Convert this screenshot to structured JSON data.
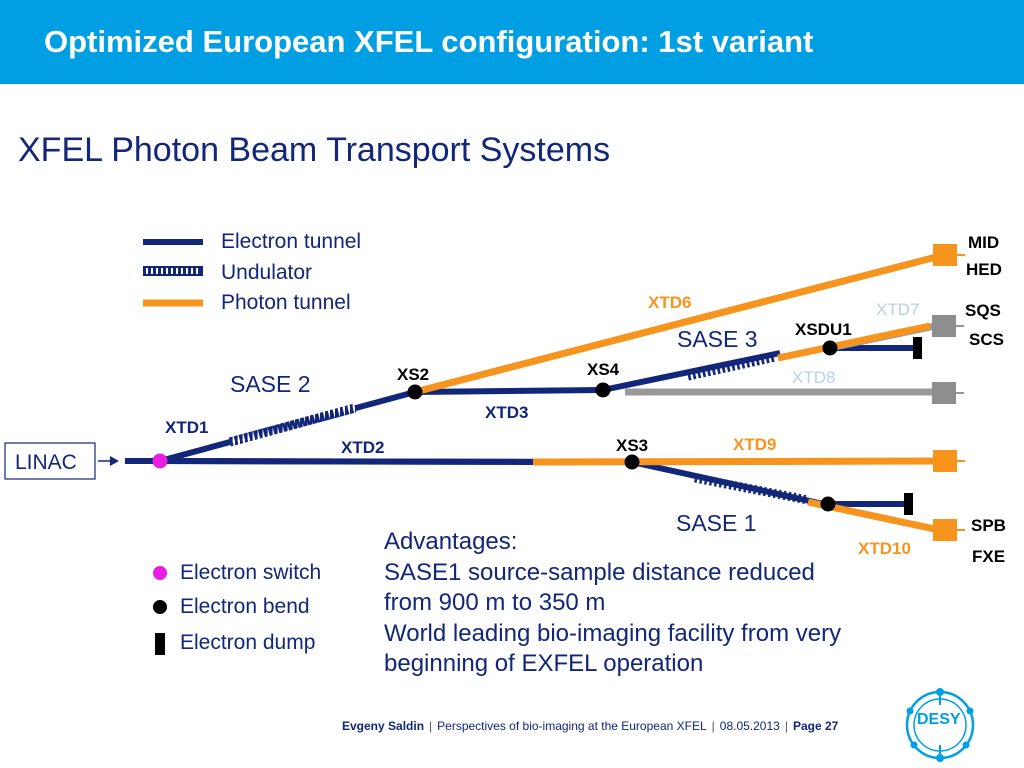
{
  "header": {
    "title": "Optimized European XFEL configuration: 1st variant"
  },
  "subtitle": "XFEL Photon Beam Transport Systems",
  "legend_lines": [
    {
      "label": "Electron tunnel",
      "color": "#12267a"
    },
    {
      "label": "Undulator",
      "color": "#12267a"
    },
    {
      "label": "Photon tunnel",
      "color": "#f7941d"
    }
  ],
  "legend_symbols": [
    {
      "label": "Electron switch",
      "color": "#e91ee2"
    },
    {
      "label": "Electron bend",
      "color": "#000000"
    },
    {
      "label": "Electron dump",
      "color": "#000000"
    }
  ],
  "diagram": {
    "linac": "LINAC",
    "sase": [
      "SASE 2",
      "SASE 3",
      "SASE 1"
    ],
    "nodes": [
      "XS2",
      "XS4",
      "XS3",
      "XSDU1"
    ],
    "tunnels": {
      "xtd1": "XTD1",
      "xtd2": "XTD2",
      "xtd3": "XTD3",
      "xtd6": "XTD6",
      "xtd7": "XTD7",
      "xtd8": "XTD8",
      "xtd9": "XTD9",
      "xtd10": "XTD10"
    },
    "stations": {
      "mid": "MID",
      "hed": "HED",
      "sqs": "SQS",
      "scs": "SCS",
      "spb": "SPB",
      "fxe": "FXE"
    },
    "colors": {
      "electron": "#12267a",
      "photon": "#f7941d",
      "inactive": "#999999",
      "inactive_label": "#b8d0ea",
      "switch": "#e91ee2"
    }
  },
  "advantages": {
    "heading": "Advantages:",
    "lines": [
      "SASE1 source-sample distance reduced",
      "from 900 m to 350 m",
      "World leading bio-imaging facility from very",
      "beginning of EXFEL operation"
    ]
  },
  "footer": {
    "author": "Evgeny Saldin",
    "talk": "Perspectives of bio-imaging at the European XFEL",
    "date": "08.05.2013",
    "page": "Page 27"
  },
  "logo_text": "DESY"
}
